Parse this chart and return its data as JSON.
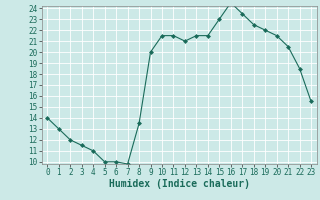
{
  "x": [
    0,
    1,
    2,
    3,
    4,
    5,
    6,
    7,
    8,
    9,
    10,
    11,
    12,
    13,
    14,
    15,
    16,
    17,
    18,
    19,
    20,
    21,
    22,
    23
  ],
  "y": [
    14.0,
    13.0,
    12.0,
    11.5,
    11.0,
    10.0,
    10.0,
    9.8,
    13.5,
    20.0,
    21.5,
    21.5,
    21.0,
    21.5,
    21.5,
    23.0,
    24.5,
    23.5,
    22.5,
    22.0,
    21.5,
    20.5,
    18.5,
    15.5
  ],
  "xlabel": "Humidex (Indice chaleur)",
  "ylim": [
    10,
    24
  ],
  "xlim": [
    -0.5,
    23.5
  ],
  "yticks": [
    10,
    11,
    12,
    13,
    14,
    15,
    16,
    17,
    18,
    19,
    20,
    21,
    22,
    23,
    24
  ],
  "xticks": [
    0,
    1,
    2,
    3,
    4,
    5,
    6,
    7,
    8,
    9,
    10,
    11,
    12,
    13,
    14,
    15,
    16,
    17,
    18,
    19,
    20,
    21,
    22,
    23
  ],
  "line_color": "#1a6b5a",
  "marker": "D",
  "marker_size": 2.0,
  "bg_color": "#cce9e7",
  "grid_color": "#ffffff",
  "xlabel_fontsize": 7,
  "tick_fontsize": 5.5,
  "xlabel_fontweight": "bold"
}
